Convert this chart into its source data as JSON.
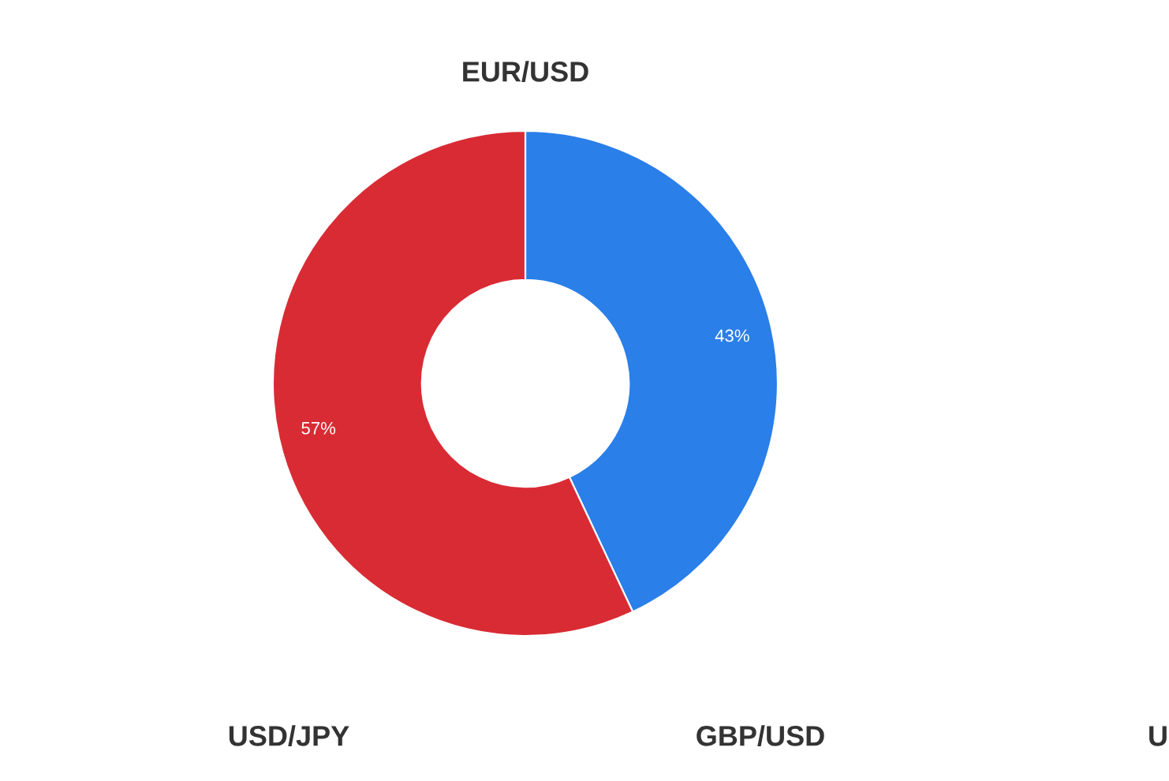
{
  "chart_data": [
    {
      "type": "donut",
      "title": "EUR/USD",
      "categories": [
        null,
        null
      ],
      "values": [
        43,
        57
      ],
      "colors": [
        "#2a7fe8",
        "#d92b34"
      ],
      "value_labels": [
        "43%",
        "57%"
      ]
    },
    {
      "type": "other",
      "title": "USD/JPY"
    },
    {
      "type": "other",
      "title": "GBP/USD"
    },
    {
      "type": "other",
      "title": "U"
    }
  ]
}
